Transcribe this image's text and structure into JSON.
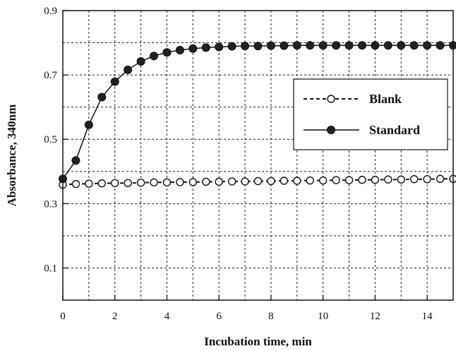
{
  "chart_data": {
    "type": "line",
    "xlabel": "Incubation time,  min",
    "ylabel": "Absorbance,  340nm",
    "xlim": [
      0,
      15
    ],
    "ylim": [
      0,
      0.9
    ],
    "xticks": [
      0,
      2,
      4,
      6,
      8,
      10,
      12,
      14
    ],
    "xtick_labels": [
      "0",
      "2",
      "4",
      "6",
      "8",
      "10",
      "12",
      "14"
    ],
    "yticks": [
      0.1,
      0.3,
      0.5,
      0.7,
      0.9
    ],
    "ytick_labels": [
      "0.1",
      "0.3",
      "0.5",
      "0.7",
      "0.9"
    ],
    "grid": true,
    "legend_position": "right",
    "series": [
      {
        "name": "Blank",
        "line_style": "dashed",
        "marker": "open-circle",
        "x": [
          0,
          0.5,
          1,
          1.5,
          2,
          2.5,
          3,
          3.5,
          4,
          4.5,
          5,
          5.5,
          6,
          6.5,
          7,
          7.5,
          8,
          8.5,
          9,
          9.5,
          10,
          10.5,
          11,
          11.5,
          12,
          12.5,
          13,
          13.5,
          14,
          14.5,
          15
        ],
        "y": [
          0.359,
          0.361,
          0.362,
          0.363,
          0.364,
          0.364,
          0.365,
          0.366,
          0.366,
          0.367,
          0.367,
          0.368,
          0.368,
          0.369,
          0.369,
          0.37,
          0.37,
          0.371,
          0.371,
          0.372,
          0.372,
          0.373,
          0.373,
          0.374,
          0.374,
          0.375,
          0.375,
          0.376,
          0.376,
          0.377,
          0.377
        ]
      },
      {
        "name": "Standard",
        "line_style": "solid",
        "marker": "filled-circle",
        "x": [
          0,
          0.5,
          1,
          1.5,
          2,
          2.5,
          3,
          3.5,
          4,
          4.5,
          5,
          5.5,
          6,
          6.5,
          7,
          7.5,
          8,
          8.5,
          9,
          9.5,
          10,
          10.5,
          11,
          11.5,
          12,
          12.5,
          13,
          13.5,
          14,
          14.5,
          15
        ],
        "y": [
          0.377,
          0.434,
          0.545,
          0.631,
          0.679,
          0.716,
          0.742,
          0.759,
          0.77,
          0.777,
          0.782,
          0.785,
          0.787,
          0.789,
          0.79,
          0.79,
          0.791,
          0.791,
          0.792,
          0.792,
          0.792,
          0.792,
          0.792,
          0.792,
          0.792,
          0.792,
          0.792,
          0.792,
          0.792,
          0.792,
          0.792
        ]
      }
    ]
  }
}
